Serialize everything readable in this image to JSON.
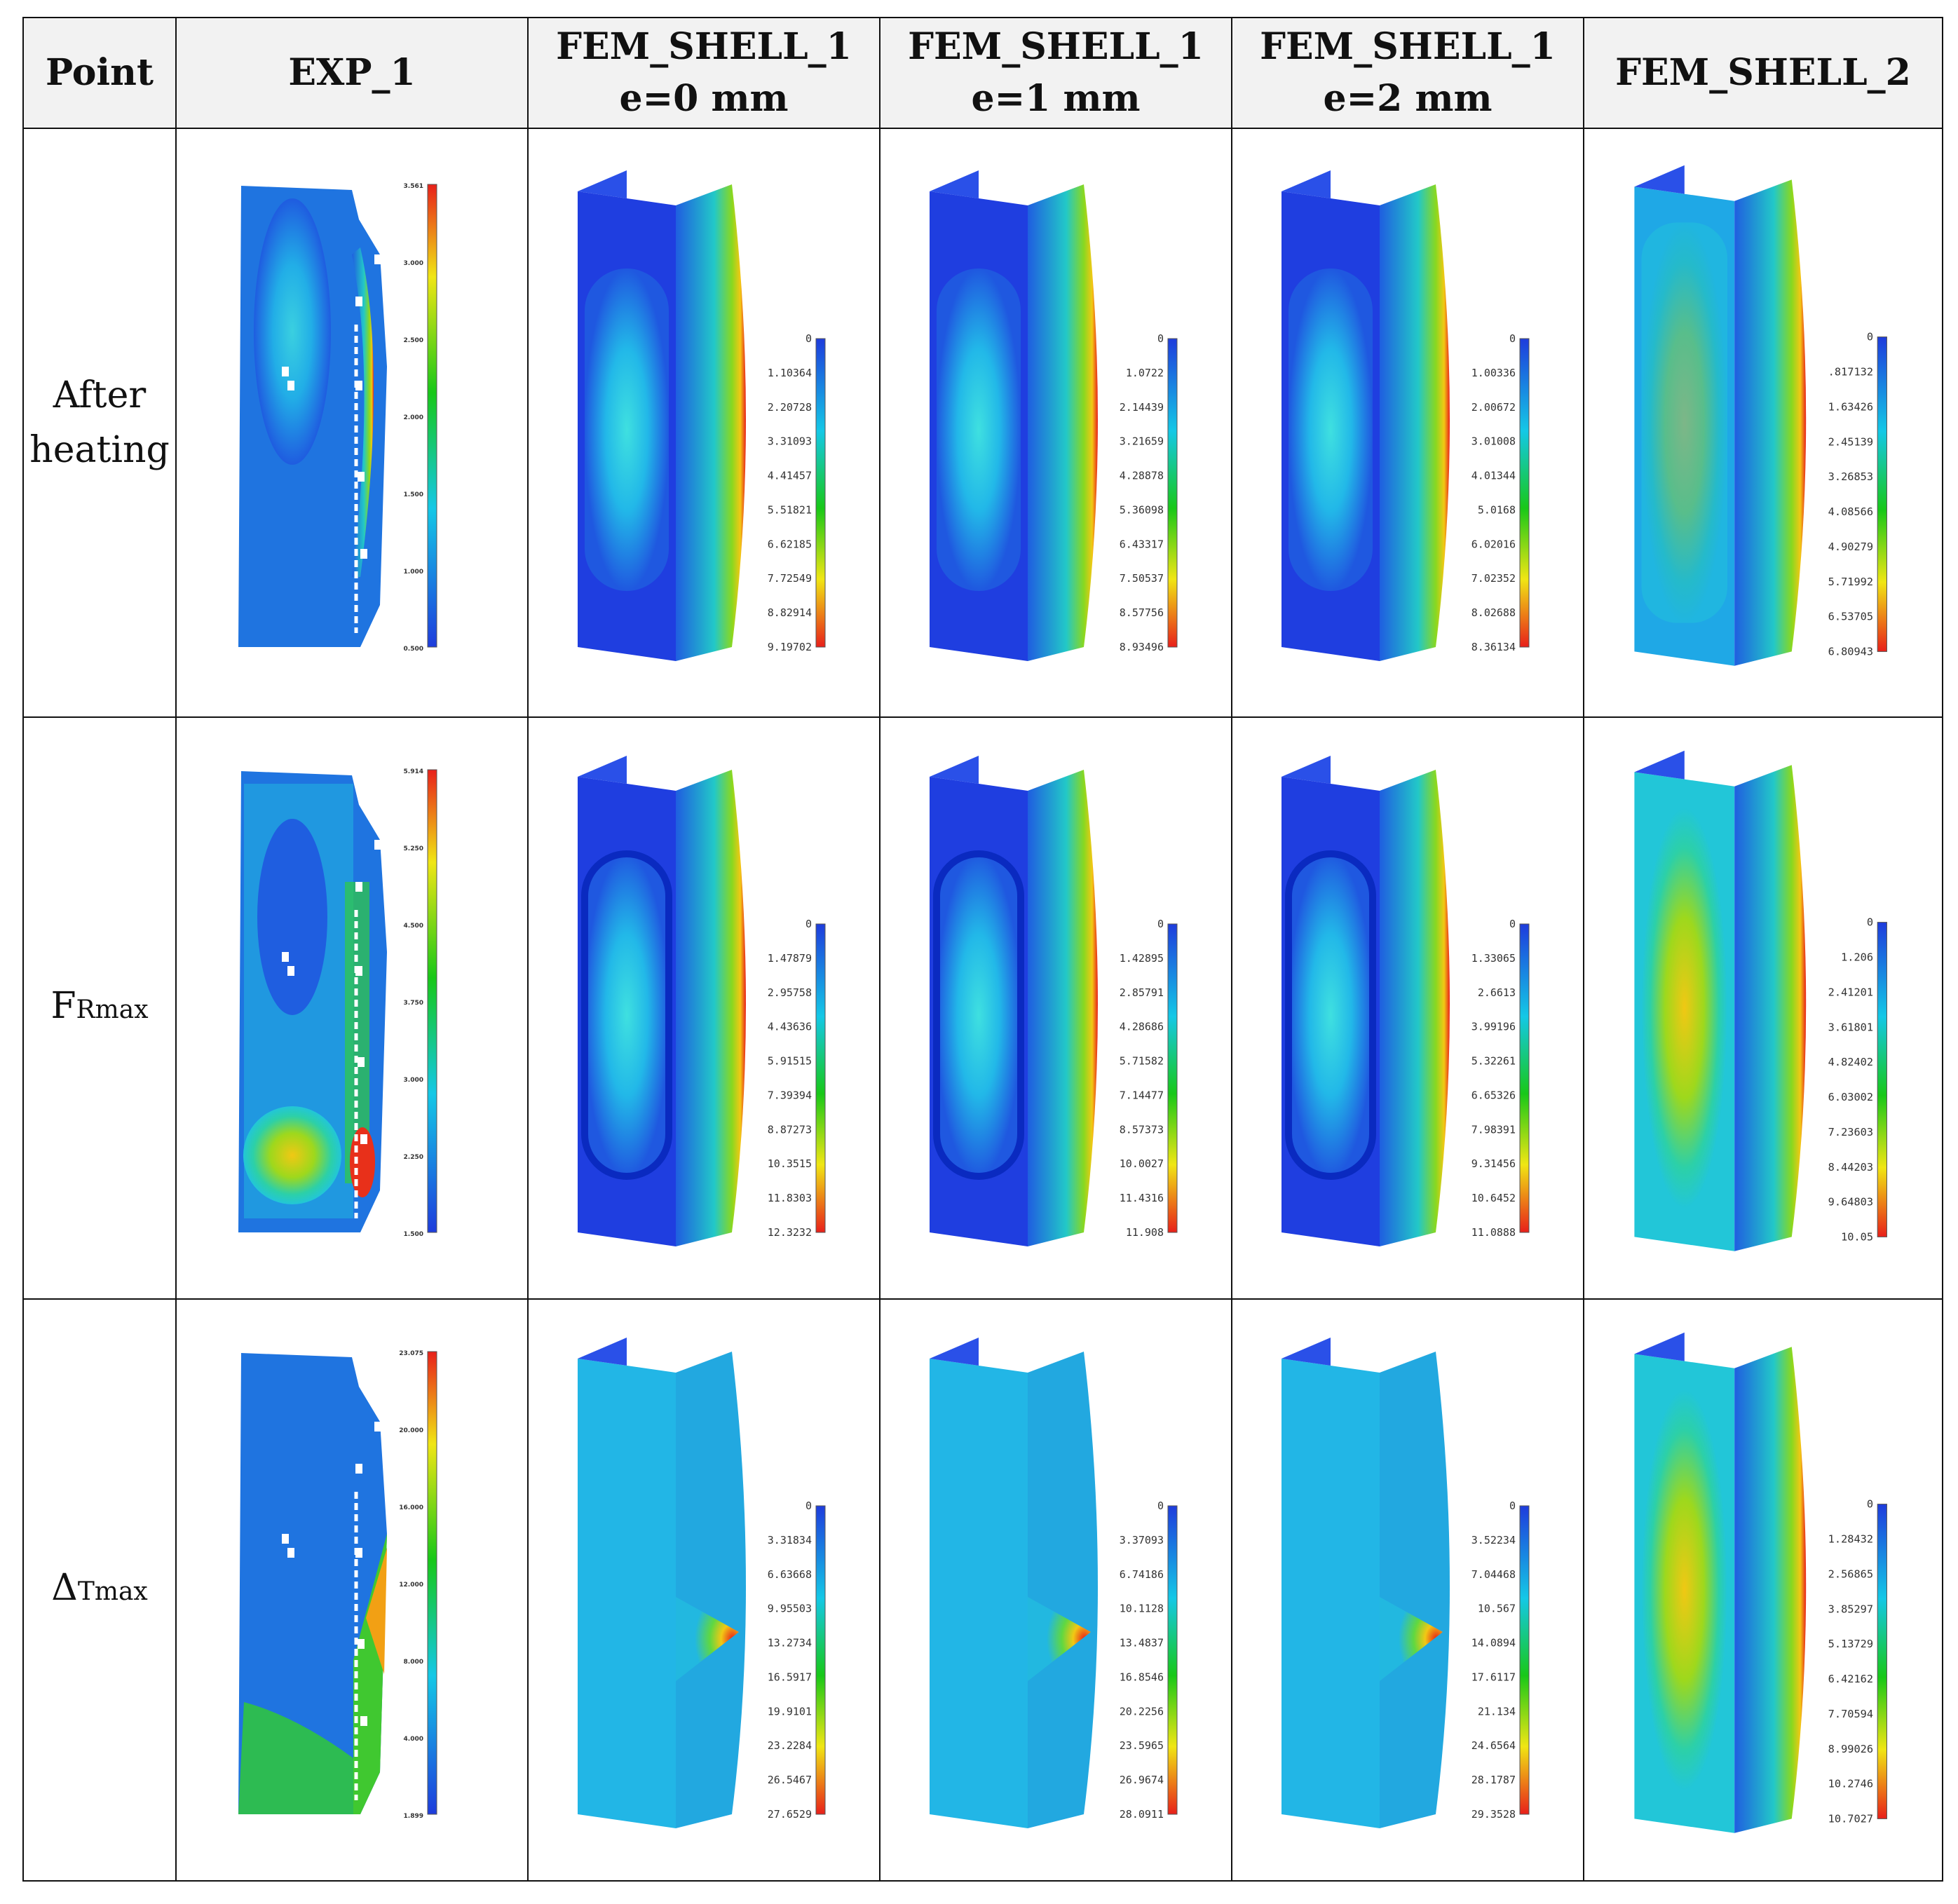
{
  "header": {
    "point": "Point",
    "exp": "EXP_1",
    "fem0": {
      "line1": "FEM_SHELL_1",
      "line2": "e=0 mm"
    },
    "fem1": {
      "line1": "FEM_SHELL_1",
      "line2": "e=1 mm"
    },
    "fem2": {
      "line1": "FEM_SHELL_1",
      "line2": "e=2 mm"
    },
    "shell2": "FEM_SHELL_2"
  },
  "rows": [
    {
      "label_line1": "After",
      "label_line2": "heating",
      "panels": [
        {
          "kind": "exp",
          "ticks": [
            "3.561",
            "3.000",
            "2.500",
            "2.000",
            "1.500",
            "1.000",
            "0.500"
          ]
        },
        {
          "kind": "fem",
          "ticks": [
            "0",
            "1.10364",
            "2.20728",
            "3.31093",
            "4.41457",
            "5.51821",
            "6.62185",
            "7.72549",
            "8.82914",
            "9.19702"
          ]
        },
        {
          "kind": "fem",
          "ticks": [
            "0",
            "1.0722",
            "2.14439",
            "3.21659",
            "4.28878",
            "5.36098",
            "6.43317",
            "7.50537",
            "8.57756",
            "8.93496"
          ]
        },
        {
          "kind": "fem",
          "ticks": [
            "0",
            "1.00336",
            "2.00672",
            "3.01008",
            "4.01344",
            "5.0168",
            "6.02016",
            "7.02352",
            "8.02688",
            "8.36134"
          ]
        },
        {
          "kind": "fem2",
          "ticks": [
            "0",
            ".817132",
            "1.63426",
            "2.45139",
            "3.26853",
            "4.08566",
            "4.90279",
            "5.71992",
            "6.53705",
            "6.80943"
          ]
        }
      ]
    },
    {
      "label_main": "F",
      "label_sub": "Rmax",
      "panels": [
        {
          "kind": "exp",
          "ticks": [
            "5.914",
            "5.250",
            "4.500",
            "3.750",
            "3.000",
            "2.250",
            "1.500"
          ]
        },
        {
          "kind": "fem",
          "ticks": [
            "0",
            "1.47879",
            "2.95758",
            "4.43636",
            "5.91515",
            "7.39394",
            "8.87273",
            "10.3515",
            "11.8303",
            "12.3232"
          ]
        },
        {
          "kind": "fem",
          "ticks": [
            "0",
            "1.42895",
            "2.85791",
            "4.28686",
            "5.71582",
            "7.14477",
            "8.57373",
            "10.0027",
            "11.4316",
            "11.908"
          ]
        },
        {
          "kind": "fem",
          "ticks": [
            "0",
            "1.33065",
            "2.6613",
            "3.99196",
            "5.32261",
            "6.65326",
            "7.98391",
            "9.31456",
            "10.6452",
            "11.0888"
          ]
        },
        {
          "kind": "fem2",
          "ticks": [
            "0",
            "1.206",
            "2.41201",
            "3.61801",
            "4.82402",
            "6.03002",
            "7.23603",
            "8.44203",
            "9.64803",
            "10.05"
          ]
        }
      ]
    },
    {
      "label_main": "Δ",
      "label_sub": "Tmax",
      "panels": [
        {
          "kind": "exp",
          "ticks": [
            "23.075",
            "20.000",
            "16.000",
            "12.000",
            "8.000",
            "4.000",
            "1.899"
          ]
        },
        {
          "kind": "fem3",
          "ticks": [
            "0",
            "3.31834",
            "6.63668",
            "9.95503",
            "13.2734",
            "16.5917",
            "19.9101",
            "23.2284",
            "26.5467",
            "27.6529"
          ]
        },
        {
          "kind": "fem3",
          "ticks": [
            "0",
            "3.37093",
            "6.74186",
            "10.1128",
            "13.4837",
            "16.8546",
            "20.2256",
            "23.5965",
            "26.9674",
            "28.0911"
          ]
        },
        {
          "kind": "fem3",
          "ticks": [
            "0",
            "3.52234",
            "7.04468",
            "10.567",
            "14.0894",
            "17.6117",
            "21.134",
            "24.6564",
            "28.1787",
            "29.3528"
          ]
        },
        {
          "kind": "fem2",
          "ticks": [
            "0",
            "1.28432",
            "2.56865",
            "3.85297",
            "5.13729",
            "6.42162",
            "7.70594",
            "8.99026",
            "10.2746",
            "10.7027"
          ]
        }
      ]
    }
  ],
  "colors": {
    "border": "#111111",
    "header_bg": "#f2f2f2",
    "scale_low": "#1e3cdc",
    "scale_high": "#e8201a"
  }
}
